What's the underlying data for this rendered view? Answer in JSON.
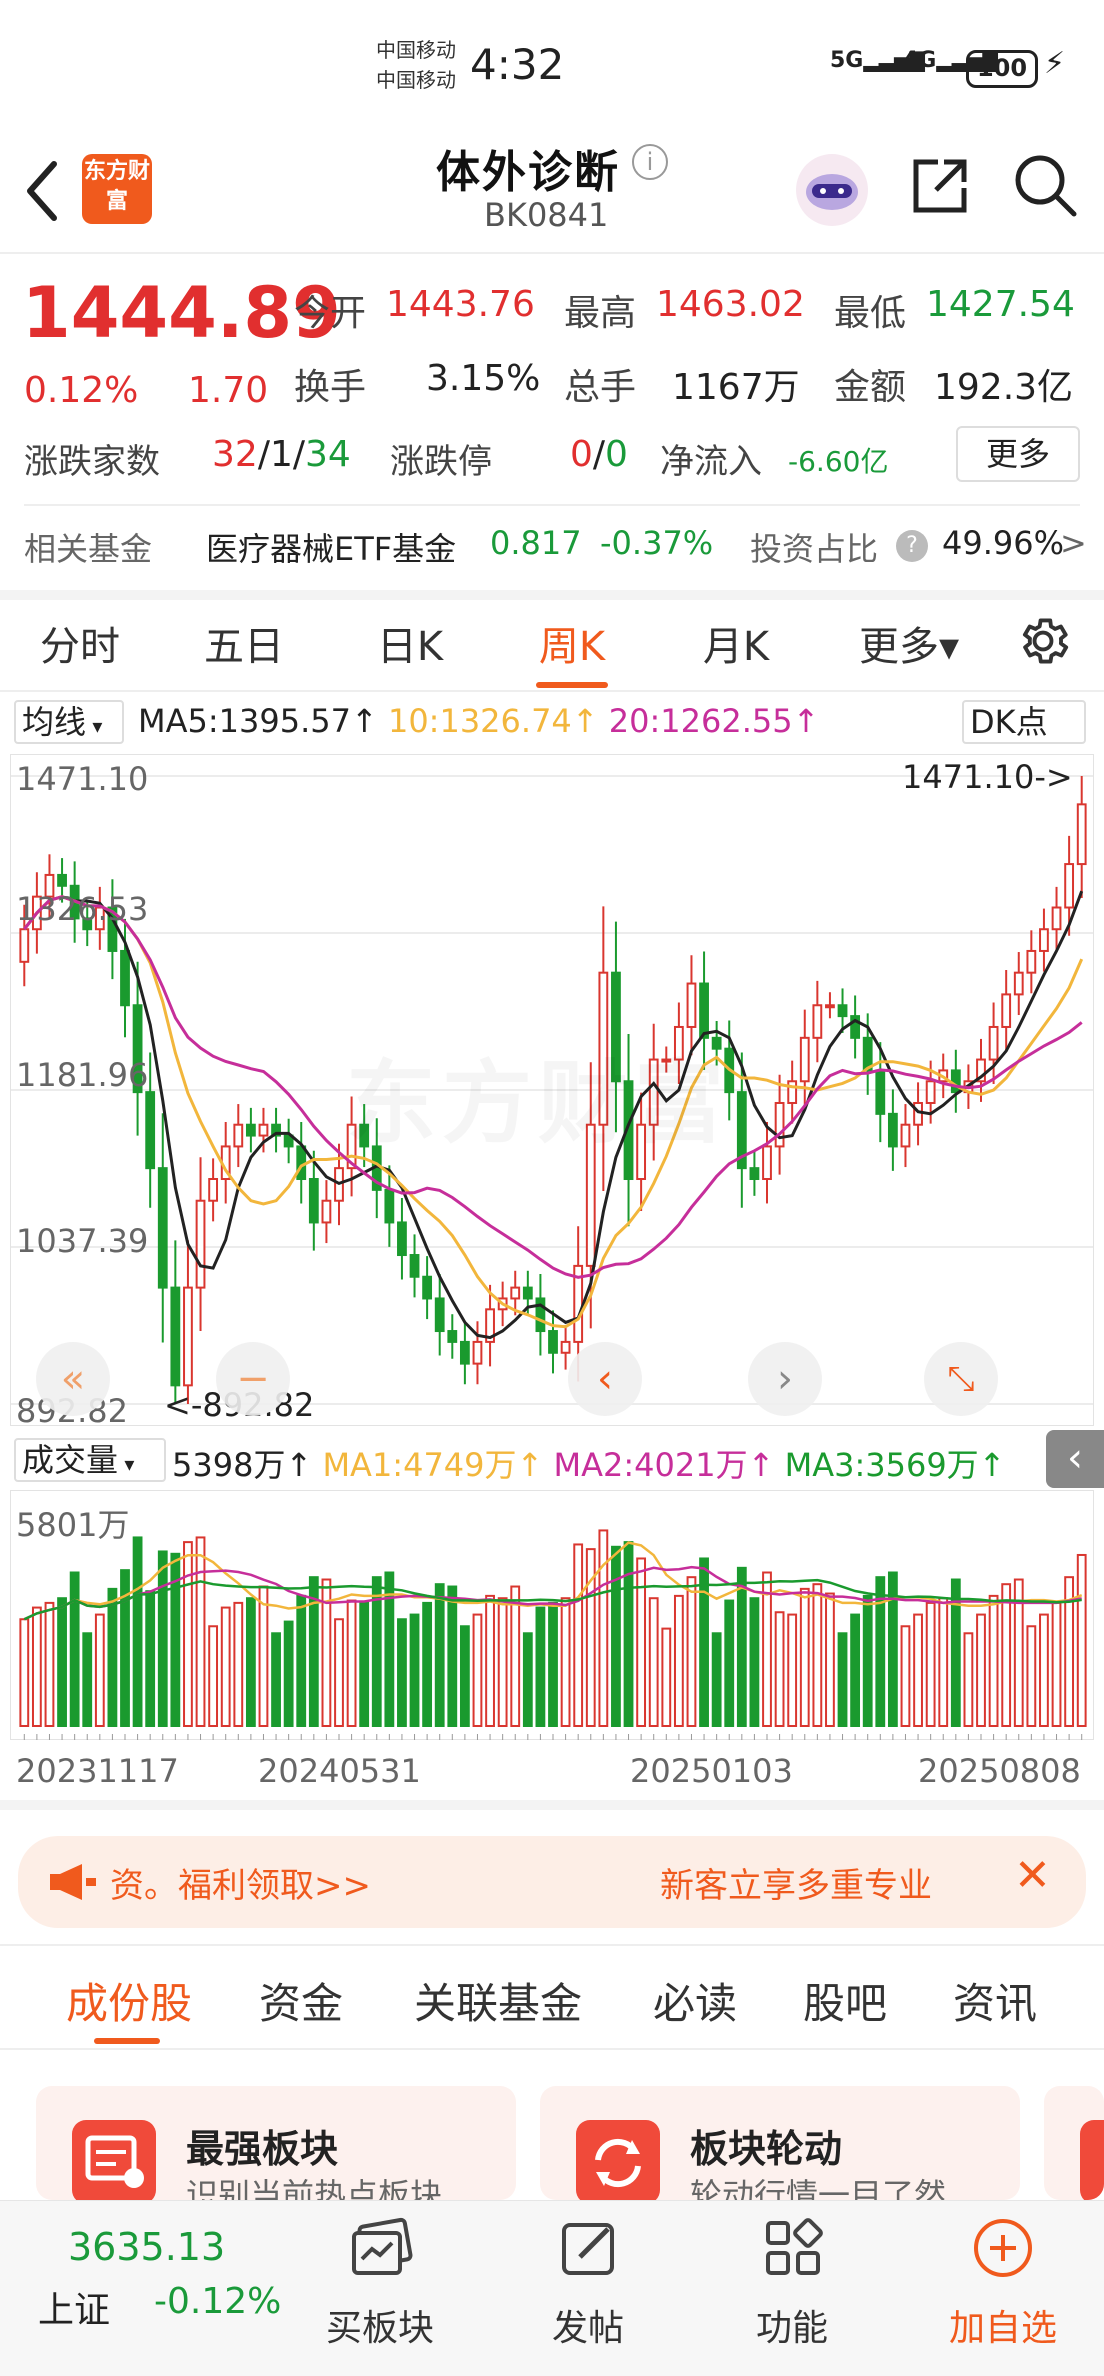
{
  "status_bar": {
    "carrier_1": "中国移动",
    "carrier_2": "中国移动",
    "time": "4:32",
    "signal_1": "5G",
    "signal_2": "4G",
    "battery": "100"
  },
  "header": {
    "logo_text": "东方财富",
    "title": "体外诊断",
    "code": "BK0841"
  },
  "quote": {
    "price": "1444.89",
    "change_pct": "0.12%",
    "change_amt": "1.70",
    "open_label": "今开",
    "open_value": "1443.76",
    "high_label": "最高",
    "high_value": "1463.02",
    "low_label": "最低",
    "low_value": "1427.54",
    "turnover_label": "换手",
    "turnover_value": "3.15%",
    "volume_label": "总手",
    "volume_value": "1167万",
    "amount_label": "金额",
    "amount_value": "192.3亿",
    "breadth_label": "涨跌家数",
    "breadth_up": "32",
    "breadth_flat": "1",
    "breadth_down": "34",
    "limit_label": "涨跌停",
    "limit_up": "0",
    "limit_down": "0",
    "netflow_label": "净流入",
    "netflow_value": "-6.60亿",
    "more_button": "更多"
  },
  "related_fund": {
    "label": "相关基金",
    "name": "医疗器械ETF基金",
    "price": "0.817",
    "change": "-0.37%",
    "ratio_label": "投资占比",
    "ratio_value": "49.96%",
    "arrow": ">"
  },
  "period_tabs": [
    {
      "label": "分时",
      "active": false
    },
    {
      "label": "五日",
      "active": false
    },
    {
      "label": "日K",
      "active": false
    },
    {
      "label": "周K",
      "active": true
    },
    {
      "label": "月K",
      "active": false
    },
    {
      "label": "更多▾",
      "active": false
    }
  ],
  "kline": {
    "indicator_select": "均线",
    "ma5": "MA5:1395.57↑",
    "ma10": "10:1326.74↑",
    "ma20": "20:1262.55↑",
    "dk_button": "DK点",
    "y_labels": [
      "1471.10",
      "1326.53",
      "1181.96",
      "1037.39",
      "892.82"
    ],
    "max_marker": "1471.10->",
    "min_marker": "<-892.82",
    "watermark": "东方财富",
    "colors": {
      "up": "#d9362f",
      "down": "#1a9a2e",
      "ma5": "#222222",
      "ma10": "#f2b63c",
      "ma20": "#c62e9a"
    }
  },
  "volume": {
    "indicator_select": "成交量",
    "value": "5398万↑",
    "ma1": "MA1:4749万↑",
    "ma2": "MA2:4021万↑",
    "ma3": "MA3:3569万↑",
    "y_label": "5801万",
    "x_labels": [
      "20231117",
      "20240531",
      "20250103",
      "20250808"
    ]
  },
  "chart_data": {
    "type": "candlestick",
    "period": "weekly",
    "ylim": [
      892.82,
      1471.1
    ],
    "y_ticks": [
      1471.1,
      1326.53,
      1181.96,
      1037.39,
      892.82
    ],
    "x_ticks": [
      "20231117",
      "20240531",
      "20250103",
      "20250808"
    ],
    "max": 1471.1,
    "min": 892.82,
    "closes": [
      1330,
      1360,
      1380,
      1370,
      1340,
      1330,
      1350,
      1310,
      1260,
      1180,
      1110,
      1000,
      910,
      1000,
      1080,
      1100,
      1130,
      1150,
      1140,
      1150,
      1140,
      1130,
      1100,
      1060,
      1080,
      1110,
      1150,
      1130,
      1090,
      1060,
      1030,
      1010,
      990,
      960,
      950,
      930,
      950,
      980,
      990,
      1000,
      990,
      960,
      940,
      950,
      1020,
      1150,
      1290,
      1190,
      1100,
      1150,
      1210,
      1210,
      1240,
      1280,
      1230,
      1220,
      1180,
      1110,
      1100,
      1130,
      1170,
      1190,
      1230,
      1260,
      1260,
      1250,
      1230,
      1200,
      1160,
      1130,
      1150,
      1170,
      1190,
      1200,
      1180,
      1190,
      1210,
      1240,
      1270,
      1290,
      1310,
      1330,
      1350,
      1390,
      1445
    ],
    "opens": [
      1300,
      1330,
      1360,
      1380,
      1370,
      1340,
      1330,
      1350,
      1310,
      1260,
      1180,
      1110,
      1000,
      910,
      1000,
      1080,
      1100,
      1130,
      1150,
      1140,
      1150,
      1140,
      1130,
      1100,
      1060,
      1080,
      1110,
      1150,
      1130,
      1090,
      1060,
      1030,
      1010,
      990,
      960,
      950,
      930,
      950,
      980,
      990,
      1000,
      990,
      960,
      940,
      950,
      1020,
      1150,
      1290,
      1190,
      1100,
      1150,
      1210,
      1210,
      1240,
      1280,
      1230,
      1220,
      1180,
      1110,
      1100,
      1130,
      1170,
      1190,
      1230,
      1260,
      1260,
      1250,
      1230,
      1200,
      1160,
      1130,
      1150,
      1170,
      1190,
      1200,
      1180,
      1190,
      1210,
      1240,
      1270,
      1290,
      1310,
      1330,
      1350,
      1390
    ],
    "volume_ylim": [
      0,
      5801
    ]
  },
  "banner": {
    "text_left": "资。福利领取>>",
    "text_right": "新客立享多重专业"
  },
  "bottom_tabs": [
    "成份股",
    "资金",
    "关联基金",
    "必读",
    "股吧",
    "资讯"
  ],
  "cards": [
    {
      "title": "最强板块",
      "subtitle": "识别当前热点板块"
    },
    {
      "title": "板块轮动",
      "subtitle": "轮动行情一目了然"
    }
  ],
  "bottom_nav": {
    "index_price": "3635.13",
    "index_name": "上证",
    "index_change": "-0.12%",
    "buy_label": "买板块",
    "post_label": "发帖",
    "func_label": "功能",
    "add_label": "加自选"
  }
}
